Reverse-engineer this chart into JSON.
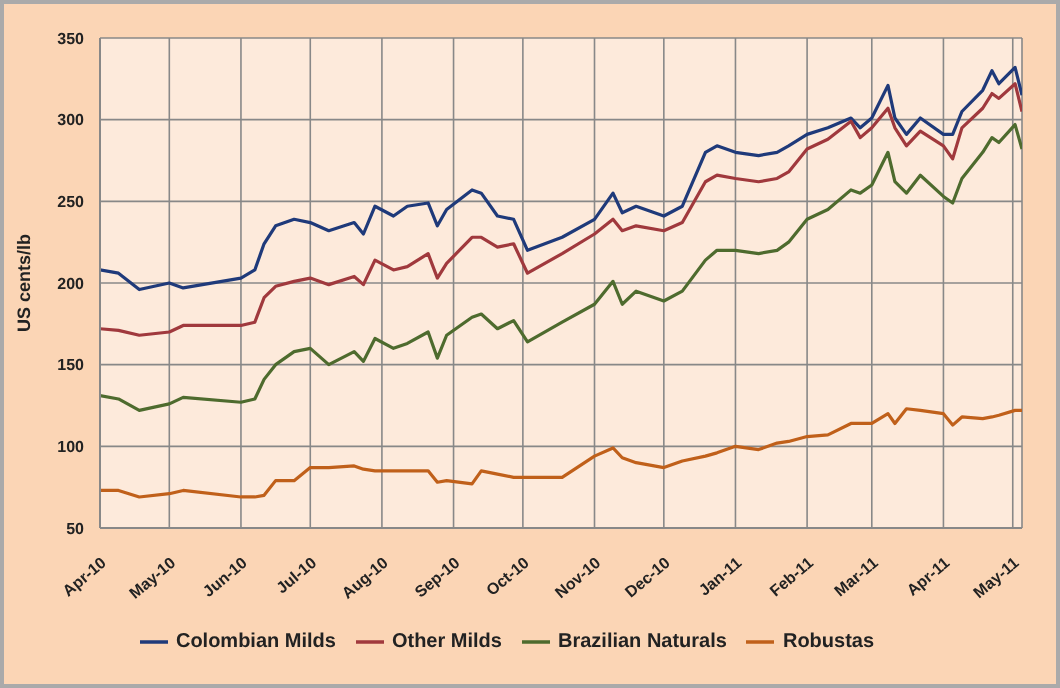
{
  "chart_data": {
    "type": "line",
    "ylabel": "US cents/lb",
    "x": [
      "2010-04-01",
      "2010-04-09",
      "2010-04-18",
      "2010-05-01",
      "2010-05-07",
      "2010-06-01",
      "2010-06-07",
      "2010-06-11",
      "2010-06-16",
      "2010-06-24",
      "2010-07-01",
      "2010-07-09",
      "2010-07-20",
      "2010-07-24",
      "2010-07-29",
      "2010-08-06",
      "2010-08-12",
      "2010-08-21",
      "2010-08-25",
      "2010-08-29",
      "2010-09-09",
      "2010-09-13",
      "2010-09-20",
      "2010-09-27",
      "2010-10-03",
      "2010-10-18",
      "2010-11-01",
      "2010-11-09",
      "2010-11-13",
      "2010-11-19",
      "2010-12-01",
      "2010-12-09",
      "2010-12-19",
      "2010-12-24",
      "2011-01-01",
      "2011-01-11",
      "2011-01-19",
      "2011-01-24",
      "2011-02-01",
      "2011-02-10",
      "2011-02-20",
      "2011-02-24",
      "2011-03-01",
      "2011-03-08",
      "2011-03-11",
      "2011-03-16",
      "2011-03-22",
      "2011-04-01",
      "2011-04-05",
      "2011-04-09",
      "2011-04-18",
      "2011-04-22",
      "2011-04-25",
      "2011-05-02",
      "2011-05-05"
    ],
    "series": [
      {
        "name": "Colombian Milds",
        "color": "#1f3a7a",
        "values": [
          208,
          206,
          196,
          200,
          197,
          203,
          208,
          224,
          235,
          239,
          237,
          232,
          237,
          230,
          247,
          241,
          247,
          249,
          235,
          245,
          257,
          255,
          241,
          239,
          220,
          228,
          239,
          255,
          243,
          247,
          241,
          247,
          280,
          284,
          280,
          278,
          280,
          284,
          291,
          295,
          301,
          295,
          301,
          321,
          301,
          291,
          301,
          291,
          291,
          305,
          318,
          330,
          322,
          332,
          315
        ]
      },
      {
        "name": "Other Milds",
        "color": "#a0393d",
        "values": [
          172,
          171,
          168,
          170,
          174,
          174,
          176,
          191,
          198,
          201,
          203,
          199,
          204,
          199,
          214,
          208,
          210,
          218,
          203,
          212,
          228,
          228,
          222,
          224,
          206,
          218,
          230,
          239,
          232,
          235,
          232,
          237,
          262,
          266,
          264,
          262,
          264,
          268,
          282,
          288,
          299,
          289,
          295,
          307,
          295,
          284,
          293,
          284,
          276,
          295,
          307,
          316,
          313,
          322,
          305
        ]
      },
      {
        "name": "Brazilian Naturals",
        "color": "#4e6b2e",
        "values": [
          131,
          129,
          122,
          126,
          130,
          127,
          129,
          141,
          150,
          158,
          160,
          150,
          158,
          152,
          166,
          160,
          163,
          170,
          154,
          168,
          179,
          181,
          172,
          177,
          164,
          176,
          187,
          201,
          187,
          195,
          189,
          195,
          214,
          220,
          220,
          218,
          220,
          225,
          239,
          245,
          257,
          255,
          260,
          280,
          262,
          255,
          266,
          253,
          249,
          264,
          280,
          289,
          286,
          297,
          282
        ]
      },
      {
        "name": "Robustas",
        "color": "#c0601a",
        "values": [
          73,
          73,
          69,
          71,
          73,
          69,
          69,
          70,
          79,
          79,
          87,
          87,
          88,
          86,
          85,
          85,
          85,
          85,
          78,
          79,
          77,
          85,
          83,
          81,
          81,
          81,
          94,
          99,
          93,
          90,
          87,
          91,
          94,
          96,
          100,
          98,
          102,
          103,
          106,
          107,
          114,
          114,
          114,
          120,
          114,
          123,
          122,
          120,
          113,
          118,
          117,
          118,
          119,
          122,
          122
        ]
      }
    ],
    "xlim": [
      "2010-04-01",
      "2011-05-05"
    ],
    "xticks": [
      {
        "value": "2010-04-01",
        "label": "Apr-10"
      },
      {
        "value": "2010-05-01",
        "label": "May-10"
      },
      {
        "value": "2010-06-01",
        "label": "Jun-10"
      },
      {
        "value": "2010-07-01",
        "label": "Jul-10"
      },
      {
        "value": "2010-08-01",
        "label": "Aug-10"
      },
      {
        "value": "2010-09-01",
        "label": "Sep-10"
      },
      {
        "value": "2010-10-01",
        "label": "Oct-10"
      },
      {
        "value": "2010-11-01",
        "label": "Nov-10"
      },
      {
        "value": "2010-12-01",
        "label": "Dec-10"
      },
      {
        "value": "2011-01-01",
        "label": "Jan-11"
      },
      {
        "value": "2011-02-01",
        "label": "Feb-11"
      },
      {
        "value": "2011-03-01",
        "label": "Mar-11"
      },
      {
        "value": "2011-04-01",
        "label": "Apr-11"
      },
      {
        "value": "2011-05-01",
        "label": "May-11"
      }
    ],
    "ylim": [
      50,
      350
    ],
    "yticks": [
      50,
      100,
      150,
      200,
      250,
      300,
      350
    ],
    "grid": true,
    "legend": "bottom",
    "marker": "none",
    "line_style": "solid"
  }
}
